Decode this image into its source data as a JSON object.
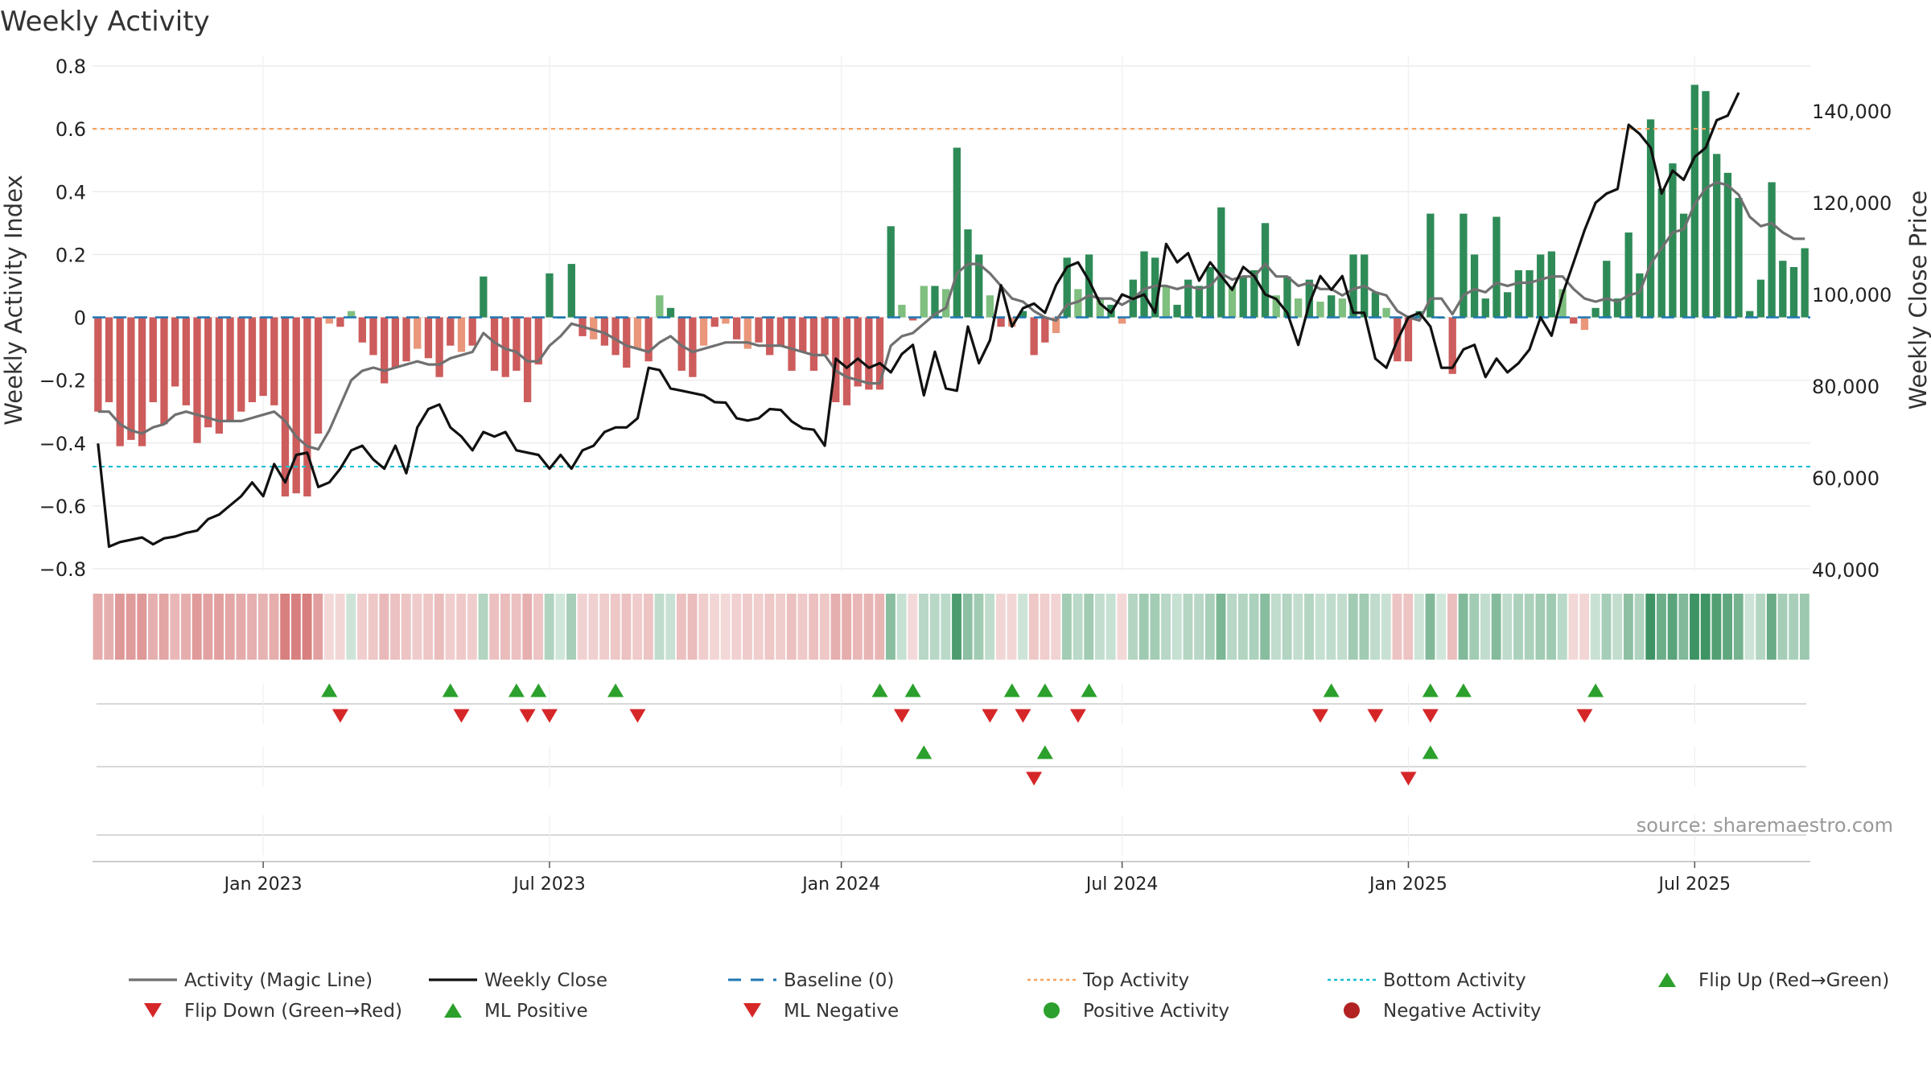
{
  "chart_data": {
    "type": "bar",
    "title": "Weekly Activity",
    "ylabel": "Weekly Activity Index",
    "y2label": "Weekly Close Price",
    "ylim": [
      -0.8,
      0.8
    ],
    "y2lim": [
      40000,
      150000
    ],
    "ytick_labels": [
      "0.8",
      "0.6",
      "0.4",
      "0.2",
      "0",
      "−0.2",
      "−0.4",
      "−0.6",
      "−0.8"
    ],
    "ytick_values": [
      0.8,
      0.6,
      0.4,
      0.2,
      0,
      -0.2,
      -0.4,
      -0.6,
      -0.8
    ],
    "y2tick_labels": [
      "140,000",
      "120,000",
      "100,000",
      "80,000",
      "60,000",
      "40,000"
    ],
    "y2tick_values": [
      140000,
      120000,
      100000,
      80000,
      60000,
      40000
    ],
    "xtick_labels": [
      "Jan 2023",
      "Jul 2023",
      "Jan 2024",
      "Jul 2024",
      "Jan 2025",
      "Jul 2025"
    ],
    "xtick_weeks": [
      15,
      41,
      67.5,
      93,
      119,
      145
    ],
    "source": "source: sharemaestro.com",
    "top_activity": 0.6,
    "bottom_activity": -0.475,
    "baseline": 0,
    "colors": {
      "strong_pos": "#2e8b57",
      "weak_pos": "#7fbf7f",
      "strong_neg": "#cd5c5c",
      "weak_neg": "#e9967a",
      "magic_line": "#707070",
      "close": "#111111",
      "baseline": "#1f77b4",
      "top": "#f4a460",
      "bottom": "#17becf",
      "up": "#2ca02c",
      "down": "#d62728",
      "pos_dot": "#2ca02c",
      "neg_dot": "#b22222"
    },
    "activity": [
      -0.3,
      -0.27,
      -0.41,
      -0.39,
      -0.41,
      -0.27,
      -0.34,
      -0.22,
      -0.28,
      -0.4,
      -0.35,
      -0.37,
      -0.33,
      -0.3,
      -0.27,
      -0.25,
      -0.28,
      -0.57,
      -0.56,
      -0.57,
      -0.37,
      -0.02,
      -0.03,
      0.02,
      -0.08,
      -0.12,
      -0.21,
      -0.16,
      -0.14,
      -0.1,
      -0.13,
      -0.19,
      -0.09,
      -0.11,
      -0.09,
      0.13,
      -0.17,
      -0.19,
      -0.17,
      -0.27,
      -0.15,
      0.14,
      0.0,
      0.17,
      -0.06,
      -0.07,
      -0.09,
      -0.12,
      -0.16,
      -0.1,
      -0.14,
      0.07,
      0.03,
      -0.17,
      -0.19,
      -0.09,
      -0.03,
      -0.02,
      -0.07,
      -0.1,
      -0.08,
      -0.12,
      -0.09,
      -0.17,
      -0.11,
      -0.17,
      -0.12,
      -0.27,
      -0.28,
      -0.22,
      -0.23,
      -0.23,
      0.29,
      0.04,
      -0.01,
      0.1,
      0.1,
      0.09,
      0.54,
      0.28,
      0.2,
      0.07,
      -0.03,
      -0.03,
      0.02,
      -0.12,
      -0.08,
      -0.05,
      0.19,
      0.09,
      0.2,
      0.06,
      0.04,
      -0.02,
      0.12,
      0.21,
      0.19,
      0.1,
      0.04,
      0.12,
      0.1,
      0.16,
      0.35,
      0.1,
      0.13,
      0.15,
      0.3,
      0.07,
      0.13,
      0.06,
      0.12,
      0.05,
      0.07,
      0.06,
      0.2,
      0.2,
      0.08,
      0.03,
      -0.14,
      -0.14,
      0.02,
      0.33,
      0.0,
      -0.18,
      0.33,
      0.2,
      0.06,
      0.32,
      0.08,
      0.15,
      0.15,
      0.2,
      0.21,
      0.09,
      -0.02,
      -0.04,
      0.03,
      0.18,
      0.06,
      0.27,
      0.14,
      0.63,
      0.41,
      0.49,
      0.33,
      0.74,
      0.72,
      0.52,
      0.46,
      0.38,
      0.02,
      0.12,
      0.43,
      0.18,
      0.16,
      0.22
    ],
    "close": [
      67500,
      45000,
      46000,
      46500,
      47000,
      45500,
      46800,
      47200,
      48000,
      48500,
      51000,
      52000,
      54000,
      56000,
      59000,
      56000,
      63000,
      59000,
      65000,
      65500,
      58000,
      59000,
      62000,
      66000,
      67000,
      64000,
      62000,
      67000,
      61000,
      71000,
      75000,
      76000,
      71000,
      69000,
      66000,
      70000,
      69000,
      70000,
      66000,
      65500,
      65000,
      62000,
      65000,
      62000,
      66000,
      67000,
      70000,
      71000,
      71000,
      73000,
      84000,
      83500,
      79500,
      79000,
      78500,
      78000,
      76500,
      76400,
      73000,
      72500,
      73000,
      75000,
      74800,
      72300,
      70800,
      70500,
      67000,
      86000,
      84000,
      86000,
      84000,
      85000,
      83000,
      87000,
      89000,
      78000,
      87500,
      79500,
      79000,
      93000,
      85000,
      90000,
      102000,
      93000,
      97000,
      98000,
      96000,
      102000,
      106000,
      107000,
      103000,
      98000,
      96000,
      100000,
      99000,
      100000,
      96000,
      111000,
      107000,
      109000,
      103000,
      107000,
      104000,
      101000,
      106000,
      104000,
      100000,
      99000,
      96000,
      89000,
      98000,
      104000,
      101000,
      104000,
      96000,
      96000,
      86000,
      84000,
      90000,
      95000,
      96000,
      93000,
      84000,
      84000,
      88000,
      89000,
      82000,
      86000,
      83000,
      85000,
      88000,
      95000,
      91000,
      100000,
      107000,
      114000,
      120000,
      122000,
      123000,
      137000,
      135000,
      132000,
      122000,
      127000,
      125000,
      130000,
      132000,
      138000,
      139000,
      144000
    ],
    "magic_line": [
      -0.3,
      -0.3,
      -0.34,
      -0.36,
      -0.37,
      -0.35,
      -0.34,
      -0.31,
      -0.3,
      -0.31,
      -0.32,
      -0.33,
      -0.33,
      -0.33,
      -0.32,
      -0.31,
      -0.3,
      -0.33,
      -0.38,
      -0.41,
      -0.42,
      -0.36,
      -0.28,
      -0.2,
      -0.17,
      -0.16,
      -0.17,
      -0.16,
      -0.15,
      -0.14,
      -0.15,
      -0.15,
      -0.13,
      -0.12,
      -0.11,
      -0.05,
      -0.08,
      -0.1,
      -0.11,
      -0.14,
      -0.14,
      -0.09,
      -0.06,
      -0.02,
      -0.03,
      -0.04,
      -0.05,
      -0.07,
      -0.09,
      -0.1,
      -0.11,
      -0.08,
      -0.06,
      -0.09,
      -0.11,
      -0.1,
      -0.09,
      -0.08,
      -0.08,
      -0.08,
      -0.09,
      -0.09,
      -0.09,
      -0.1,
      -0.11,
      -0.12,
      -0.12,
      -0.17,
      -0.19,
      -0.2,
      -0.21,
      -0.21,
      -0.09,
      -0.06,
      -0.05,
      -0.02,
      0.01,
      0.03,
      0.14,
      0.17,
      0.17,
      0.14,
      0.1,
      0.06,
      0.05,
      0.02,
      0.0,
      -0.01,
      0.04,
      0.05,
      0.07,
      0.06,
      0.06,
      0.04,
      0.06,
      0.09,
      0.1,
      0.1,
      0.09,
      0.1,
      0.09,
      0.1,
      0.14,
      0.12,
      0.13,
      0.13,
      0.17,
      0.13,
      0.13,
      0.1,
      0.11,
      0.09,
      0.09,
      0.07,
      0.09,
      0.1,
      0.08,
      0.07,
      0.02,
      0.0,
      -0.01,
      0.06,
      0.06,
      0.01,
      0.07,
      0.09,
      0.08,
      0.11,
      0.1,
      0.11,
      0.11,
      0.12,
      0.13,
      0.13,
      0.09,
      0.06,
      0.05,
      0.06,
      0.05,
      0.07,
      0.08,
      0.17,
      0.22,
      0.27,
      0.28,
      0.36,
      0.41,
      0.43,
      0.42,
      0.39,
      0.32,
      0.29,
      0.3,
      0.27,
      0.25,
      0.25
    ],
    "markers_row1_up": [
      21,
      32,
      38,
      40,
      47,
      71,
      74,
      83,
      86,
      90,
      112,
      121,
      124,
      136
    ],
    "markers_row1_down": [
      22,
      33,
      39,
      41,
      49,
      73,
      81,
      84,
      89,
      111,
      116,
      121,
      135
    ],
    "markers_row2_up": [
      75,
      86,
      121
    ],
    "markers_row2_down": [
      85,
      119
    ],
    "legend": [
      {
        "label": "Activity (Magic Line)",
        "kind": "line",
        "color": "#707070"
      },
      {
        "label": "Weekly Close",
        "kind": "line",
        "color": "#111111"
      },
      {
        "label": "Baseline (0)",
        "kind": "dash",
        "color": "#1f77b4"
      },
      {
        "label": "Top Activity",
        "kind": "dot",
        "color": "#f4a460"
      },
      {
        "label": "Bottom Activity",
        "kind": "dot",
        "color": "#17becf"
      },
      {
        "label": "Flip Up (Red→Green)",
        "kind": "tri-up",
        "color": "#2ca02c"
      },
      {
        "label": "Flip Down (Green→Red)",
        "kind": "tri-down",
        "color": "#d62728"
      },
      {
        "label": "ML Positive",
        "kind": "tri-up",
        "color": "#2ca02c"
      },
      {
        "label": "ML Negative",
        "kind": "tri-down",
        "color": "#d62728"
      },
      {
        "label": "Positive Activity",
        "kind": "circle",
        "color": "#2ca02c"
      },
      {
        "label": "Negative Activity",
        "kind": "circle",
        "color": "#b22222"
      }
    ]
  }
}
